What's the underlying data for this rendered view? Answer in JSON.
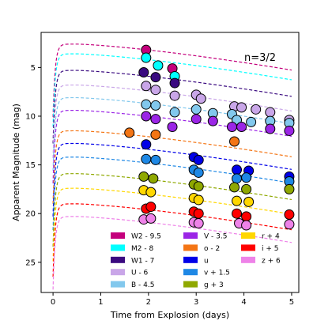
{
  "chart_data": {
    "type": "scatter",
    "title": "",
    "xlabel": "Time from Explosion (days)",
    "ylabel": "Apparent Magnitude (mag)",
    "xlim": [
      -0.25,
      5.15
    ],
    "ylim": [
      28.1,
      1.4
    ],
    "y_inverted": true,
    "xticks": [
      "0",
      "1",
      "2",
      "3",
      "4",
      "5"
    ],
    "yticks": [
      "5",
      "10",
      "15",
      "20",
      "25"
    ],
    "annotation": "n=3/2",
    "legend_position": "lower-right",
    "legend_columns": 3,
    "grid": false,
    "series": [
      {
        "name": "W2 - 9.5",
        "color": "#c4007c",
        "model_peak": 2.6,
        "points": [
          [
            1.95,
            3.2
          ],
          [
            2.5,
            5.1
          ]
        ]
      },
      {
        "name": "M2 - 8",
        "color": "#00ffff",
        "model_peak": 3.6,
        "points": [
          [
            1.95,
            4.0
          ],
          [
            2.2,
            4.8
          ],
          [
            2.55,
            5.9
          ]
        ]
      },
      {
        "name": "W1 - 7",
        "color": "#3a0a80",
        "model_peak": 5.3,
        "points": [
          [
            1.9,
            5.5
          ],
          [
            2.15,
            6.0
          ],
          [
            2.55,
            6.6
          ]
        ]
      },
      {
        "name": "U - 6",
        "color": "#c9a6e8",
        "model_peak": 6.8,
        "points": [
          [
            1.95,
            6.9
          ],
          [
            2.15,
            7.3
          ],
          [
            2.55,
            7.9
          ],
          [
            3.0,
            7.8
          ],
          [
            3.1,
            8.2
          ],
          [
            3.8,
            9.0
          ],
          [
            3.95,
            9.1
          ],
          [
            4.25,
            9.3
          ],
          [
            4.55,
            9.6
          ],
          [
            4.95,
            10.4
          ]
        ]
      },
      {
        "name": "B - 4.5",
        "color": "#82c8ed",
        "model_peak": 8.1,
        "points": [
          [
            1.95,
            8.8
          ],
          [
            2.15,
            8.9
          ],
          [
            2.55,
            9.6
          ],
          [
            3.0,
            9.3
          ],
          [
            3.35,
            9.7
          ],
          [
            3.75,
            9.8
          ],
          [
            3.85,
            10.4
          ],
          [
            4.15,
            10.6
          ],
          [
            4.55,
            10.5
          ],
          [
            4.95,
            10.7
          ]
        ]
      },
      {
        "name": "V - 3.5",
        "color": "#9b25e6",
        "model_peak": 9.4,
        "points": [
          [
            1.95,
            10.0
          ],
          [
            2.15,
            10.3
          ],
          [
            2.5,
            11.1
          ],
          [
            3.0,
            10.3
          ],
          [
            3.35,
            10.5
          ],
          [
            3.75,
            11.1
          ],
          [
            3.95,
            11.1
          ],
          [
            4.55,
            11.3
          ],
          [
            4.95,
            11.5
          ]
        ]
      },
      {
        "name": "o - 2",
        "color": "#f47514",
        "model_peak": 11.5,
        "points": [
          [
            1.6,
            11.7
          ],
          [
            2.15,
            11.9
          ],
          [
            3.8,
            12.6
          ]
        ]
      },
      {
        "name": "u",
        "color": "#0000e8",
        "model_peak": 12.8,
        "points": [
          [
            1.95,
            12.9
          ],
          [
            2.95,
            14.2
          ],
          [
            3.05,
            14.5
          ],
          [
            3.85,
            15.5
          ],
          [
            4.1,
            15.6
          ],
          [
            4.95,
            16.2
          ]
        ]
      },
      {
        "name": "v + 1.5",
        "color": "#1e88e5",
        "model_peak": 14.2,
        "points": [
          [
            1.95,
            14.4
          ],
          [
            2.15,
            14.5
          ],
          [
            2.95,
            15.5
          ],
          [
            3.05,
            15.8
          ],
          [
            3.85,
            16.4
          ],
          [
            4.05,
            16.3
          ],
          [
            4.95,
            16.7
          ]
        ]
      },
      {
        "name": "g + 3",
        "color": "#8fa800",
        "model_peak": 15.9,
        "points": [
          [
            1.9,
            16.2
          ],
          [
            2.1,
            16.4
          ],
          [
            2.95,
            17.0
          ],
          [
            3.05,
            17.2
          ],
          [
            3.8,
            17.3
          ],
          [
            4.05,
            17.5
          ],
          [
            4.95,
            17.5
          ]
        ]
      },
      {
        "name": "r + 4",
        "color": "#ffd700",
        "model_peak": 17.4,
        "points": [
          [
            1.9,
            17.6
          ],
          [
            2.05,
            17.8
          ],
          [
            2.95,
            18.4
          ],
          [
            3.05,
            18.6
          ],
          [
            3.85,
            18.7
          ],
          [
            4.1,
            18.8
          ]
        ]
      },
      {
        "name": "i + 5",
        "color": "#ff0000",
        "model_peak": 19.0,
        "points": [
          [
            1.95,
            19.5
          ],
          [
            2.05,
            19.3
          ],
          [
            2.95,
            19.8
          ],
          [
            3.05,
            20.0
          ],
          [
            3.85,
            20.0
          ],
          [
            4.05,
            20.3
          ],
          [
            4.95,
            20.1
          ]
        ]
      },
      {
        "name": "z + 6",
        "color": "#ee82e8",
        "model_peak": 20.3,
        "points": [
          [
            1.9,
            20.6
          ],
          [
            2.05,
            20.5
          ],
          [
            2.95,
            20.9
          ],
          [
            3.05,
            21.0
          ],
          [
            3.9,
            21.0
          ],
          [
            4.05,
            21.2
          ],
          [
            4.95,
            21.1
          ]
        ]
      }
    ]
  }
}
